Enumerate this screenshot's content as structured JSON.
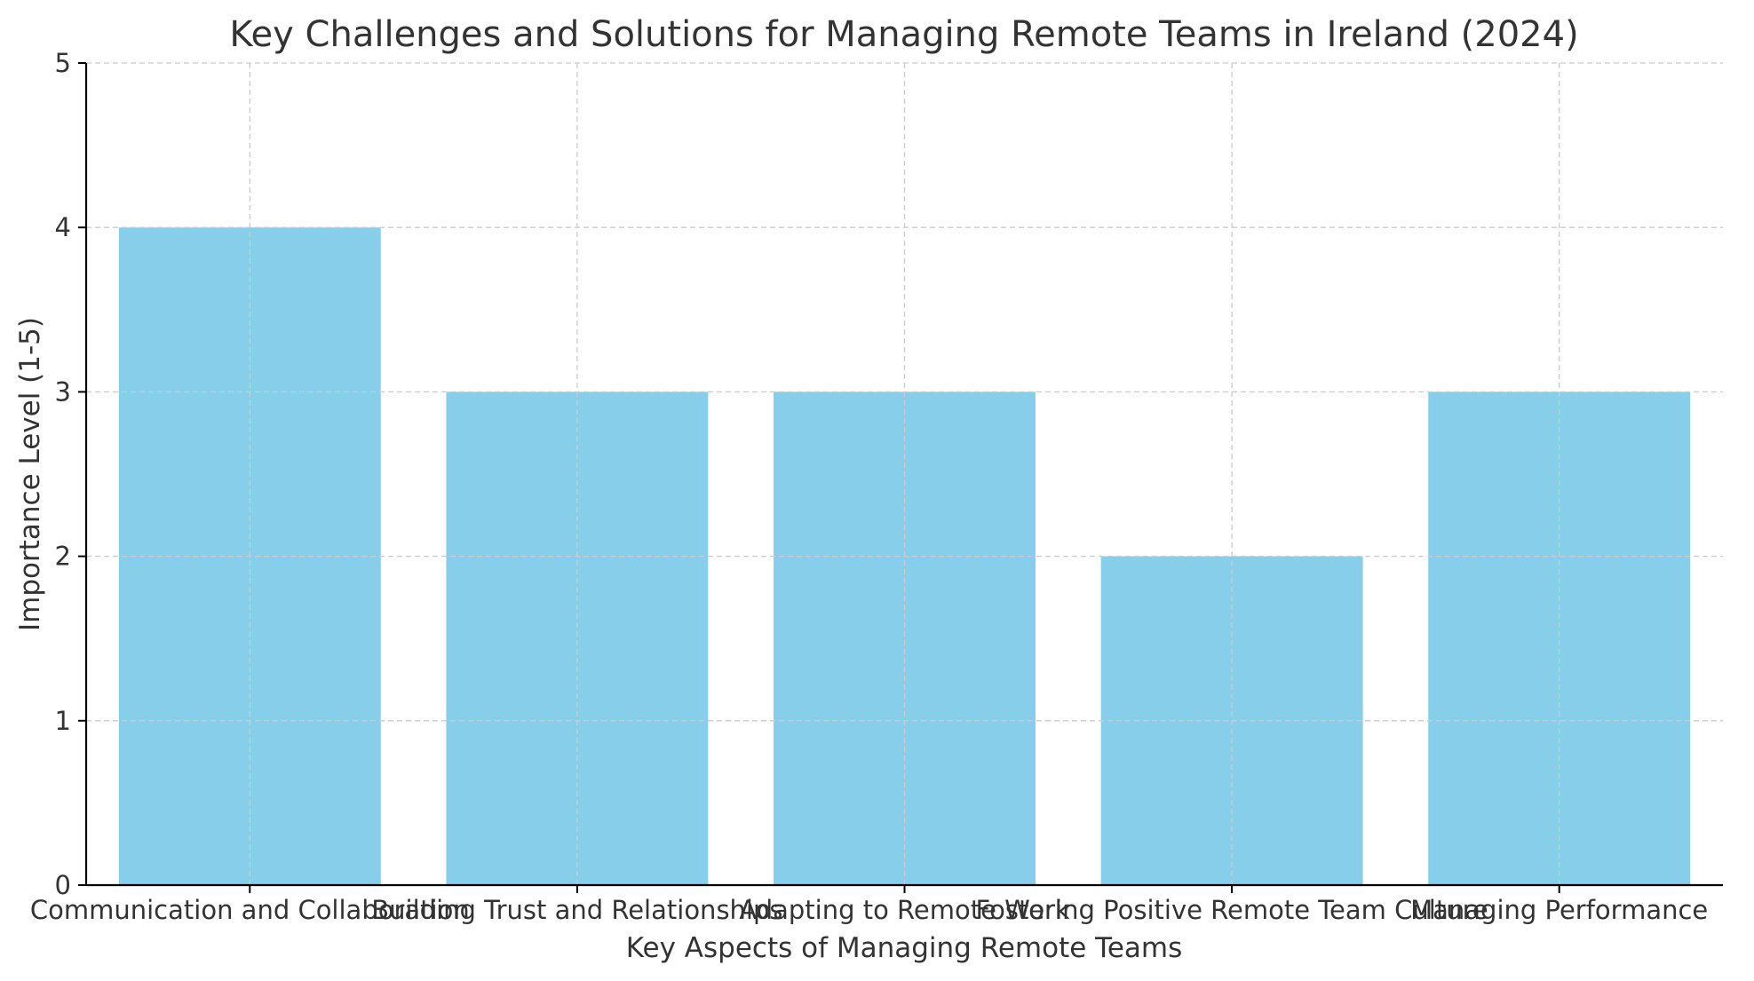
{
  "chart_data": {
    "type": "bar",
    "title": "Key Challenges and Solutions for Managing Remote Teams in Ireland (2024)",
    "xlabel": "Key Aspects of Managing Remote Teams",
    "ylabel": "Importance Level (1-5)",
    "categories": [
      "Communication and Collaboration",
      "Building Trust and Relationships",
      "Adapting to Remote Work",
      "Fostering Positive Remote Team Culture",
      "Managing Performance"
    ],
    "values": [
      4,
      3,
      3,
      2,
      3
    ],
    "ylim": [
      0,
      5
    ],
    "yticks": [
      0,
      1,
      2,
      3,
      4,
      5
    ],
    "grid": true,
    "bar_color": "#87CEEB"
  }
}
